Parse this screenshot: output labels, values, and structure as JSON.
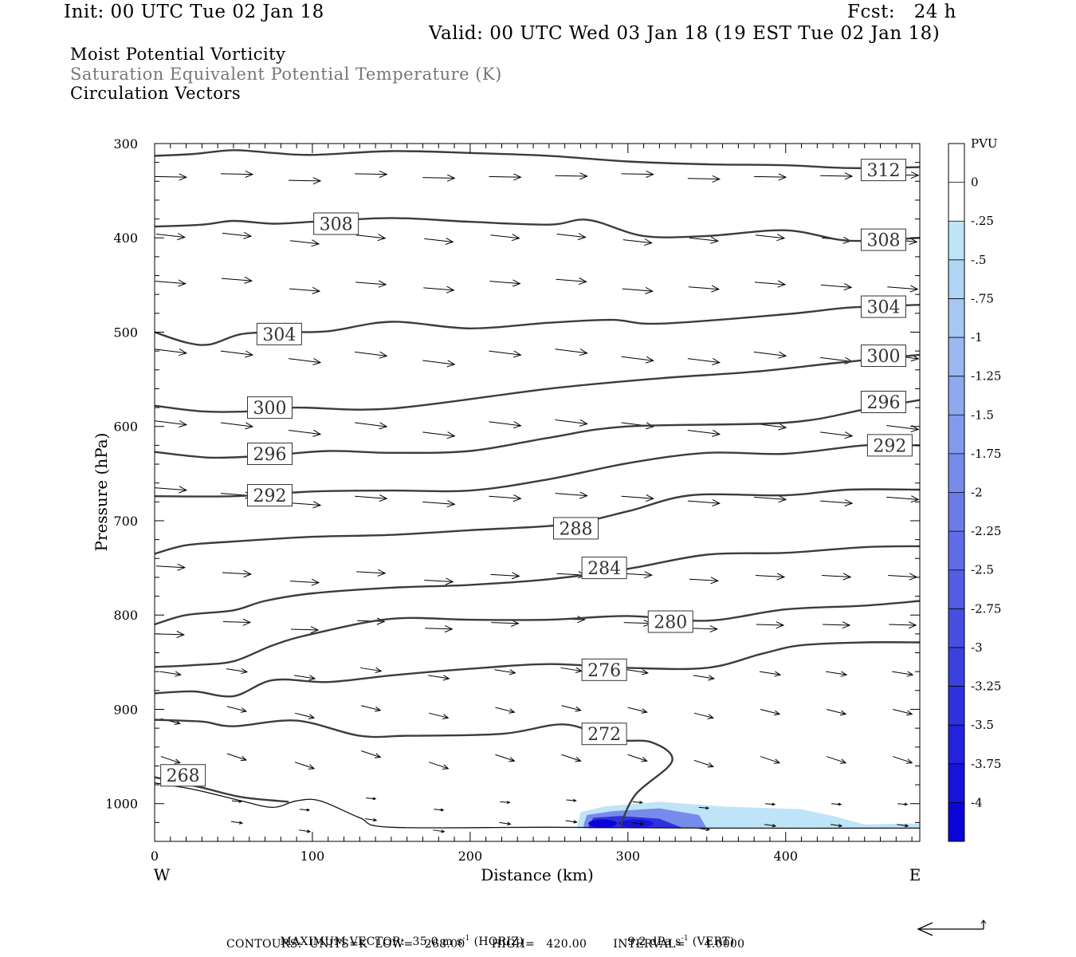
{
  "header": {
    "init": "Init: 00 UTC Tue 02 Jan 18",
    "fcst": "Fcst:   24 h",
    "valid": "Valid: 00 UTC Wed 03 Jan 18 (19 EST Tue 02 Jan 18)"
  },
  "legend_lines": {
    "line1": "Moist Potential Vorticity",
    "line2": "Saturation Equivalent Potential Temperature (K)",
    "line3": "Circulation Vectors"
  },
  "footer": {
    "max_vector_prefix": "MAXIMUM VECTOR:  35.0 m s",
    "horiz_suffix": " (HORIZ)",
    "vert_prefix": "9.2 dPa s",
    "vert_suffix": " (VERT)",
    "exp": "-1",
    "contours_line": "CONTOURS:  UNITS=K  LOW=   268.00       HIGH=   420.00       INTERVAL=     4.0000"
  },
  "chart_data": {
    "type": "cross-section",
    "xlabel": "Distance (km)",
    "ylabel": "Pressure (hPa)",
    "x_left_label": "W",
    "x_right_label": "E",
    "xlim": [
      0,
      485
    ],
    "ylim": [
      300,
      1040
    ],
    "x_ticks": [
      0,
      100,
      200,
      300,
      400
    ],
    "y_ticks": [
      300,
      400,
      500,
      600,
      700,
      800,
      900,
      1000
    ],
    "colorbar": {
      "title": "PVU",
      "labels": [
        "0",
        "-.25",
        "-.5",
        "-.75",
        "-1",
        "-1.25",
        "-1.5",
        "-1.75",
        "-2",
        "-2.25",
        "-2.5",
        "-2.75",
        "-3",
        "-3.25",
        "-3.5",
        "-3.75",
        "-4"
      ],
      "colors": [
        "#ffffff",
        "#ffffff",
        "#bfe4f8",
        "#b0d6f5",
        "#a6c7f3",
        "#9bb8f1",
        "#8fa9ef",
        "#839aed",
        "#778bea",
        "#6b7ce8",
        "#5f6de6",
        "#535ee4",
        "#474fe2",
        "#3b40e0",
        "#2f31de",
        "#2322dc",
        "#1713da",
        "#0b04d8"
      ]
    },
    "isentropes": [
      {
        "label": "312",
        "label_at": [
          462,
          328
        ],
        "points": [
          [
            0,
            313
          ],
          [
            25,
            311
          ],
          [
            50,
            307
          ],
          [
            75,
            310
          ],
          [
            100,
            312
          ],
          [
            150,
            308
          ],
          [
            200,
            310
          ],
          [
            250,
            313
          ],
          [
            300,
            319
          ],
          [
            350,
            322
          ],
          [
            400,
            323
          ],
          [
            440,
            326
          ],
          [
            485,
            325
          ]
        ]
      },
      {
        "label": "308",
        "label_at": [
          115,
          385
        ],
        "points": [
          [
            0,
            388
          ],
          [
            30,
            386
          ],
          [
            50,
            382
          ],
          [
            75,
            385
          ],
          [
            100,
            383
          ],
          [
            150,
            379
          ],
          [
            200,
            383
          ],
          [
            250,
            386
          ],
          [
            275,
            381
          ],
          [
            310,
            398
          ],
          [
            350,
            398
          ],
          [
            400,
            392
          ],
          [
            440,
            403
          ],
          [
            485,
            400
          ]
        ]
      },
      {
        "label": "308",
        "label_at": [
          462,
          402
        ],
        "points": []
      },
      {
        "label": "304",
        "label_at": [
          462,
          473
        ],
        "points": [
          [
            0,
            500
          ],
          [
            20,
            511
          ],
          [
            35,
            513
          ],
          [
            55,
            502
          ],
          [
            80,
            500
          ],
          [
            110,
            499
          ],
          [
            150,
            489
          ],
          [
            200,
            496
          ],
          [
            250,
            490
          ],
          [
            290,
            487
          ],
          [
            320,
            491
          ],
          [
            400,
            481
          ],
          [
            440,
            474
          ],
          [
            485,
            471
          ]
        ]
      },
      {
        "label": "304",
        "label_at": [
          79,
          502
        ],
        "points": []
      },
      {
        "label": "300",
        "label_at": [
          462,
          525
        ],
        "points": [
          [
            0,
            578
          ],
          [
            30,
            584
          ],
          [
            60,
            584
          ],
          [
            90,
            580
          ],
          [
            150,
            581
          ],
          [
            250,
            560
          ],
          [
            320,
            549
          ],
          [
            380,
            542
          ],
          [
            430,
            533
          ],
          [
            485,
            524
          ]
        ]
      },
      {
        "label": "300",
        "label_at": [
          73,
          580
        ],
        "points": []
      },
      {
        "label": "296",
        "label_at": [
          462,
          574
        ],
        "points": [
          [
            0,
            627
          ],
          [
            35,
            633
          ],
          [
            70,
            631
          ],
          [
            110,
            626
          ],
          [
            150,
            628
          ],
          [
            200,
            626
          ],
          [
            250,
            612
          ],
          [
            300,
            600
          ],
          [
            400,
            596
          ],
          [
            450,
            582
          ],
          [
            485,
            572
          ]
        ]
      },
      {
        "label": "296",
        "label_at": [
          73,
          629
        ],
        "points": []
      },
      {
        "label": "292",
        "label_at": [
          466,
          620
        ],
        "points": [
          [
            0,
            674
          ],
          [
            50,
            674
          ],
          [
            100,
            669
          ],
          [
            150,
            668
          ],
          [
            200,
            668
          ],
          [
            250,
            656
          ],
          [
            300,
            639
          ],
          [
            350,
            628
          ],
          [
            400,
            629
          ],
          [
            450,
            620
          ],
          [
            485,
            620
          ]
        ]
      },
      {
        "label": "292",
        "label_at": [
          73,
          673
        ],
        "points": []
      },
      {
        "label": "288",
        "label_at": [
          267,
          708
        ],
        "points": [
          [
            0,
            735
          ],
          [
            20,
            726
          ],
          [
            50,
            722
          ],
          [
            100,
            717
          ],
          [
            150,
            715
          ],
          [
            200,
            710
          ],
          [
            260,
            704
          ],
          [
            300,
            690
          ],
          [
            340,
            673
          ],
          [
            400,
            673
          ],
          [
            440,
            667
          ],
          [
            485,
            667
          ]
        ]
      },
      {
        "label": "284",
        "label_at": [
          285,
          750
        ],
        "points": [
          [
            0,
            810
          ],
          [
            20,
            800
          ],
          [
            50,
            795
          ],
          [
            70,
            785
          ],
          [
            100,
            777
          ],
          [
            150,
            771
          ],
          [
            200,
            768
          ],
          [
            250,
            762
          ],
          [
            300,
            751
          ],
          [
            350,
            736
          ],
          [
            400,
            734
          ],
          [
            450,
            728
          ],
          [
            485,
            727
          ]
        ]
      },
      {
        "label": "280",
        "label_at": [
          327,
          807
        ],
        "points": [
          [
            0,
            855
          ],
          [
            25,
            853
          ],
          [
            50,
            849
          ],
          [
            75,
            832
          ],
          [
            100,
            820
          ],
          [
            150,
            804
          ],
          [
            200,
            805
          ],
          [
            250,
            805
          ],
          [
            300,
            801
          ],
          [
            350,
            806
          ],
          [
            400,
            794
          ],
          [
            450,
            790
          ],
          [
            485,
            785
          ]
        ]
      },
      {
        "label": "276",
        "label_at": [
          285,
          858
        ],
        "points": [
          [
            0,
            883
          ],
          [
            25,
            881
          ],
          [
            50,
            886
          ],
          [
            75,
            869
          ],
          [
            110,
            871
          ],
          [
            150,
            864
          ],
          [
            200,
            857
          ],
          [
            250,
            852
          ],
          [
            300,
            856
          ],
          [
            350,
            856
          ],
          [
            385,
            841
          ],
          [
            410,
            832
          ],
          [
            450,
            829
          ],
          [
            485,
            829
          ]
        ]
      },
      {
        "label": "272",
        "label_at": [
          285,
          926
        ],
        "points": [
          [
            0,
            911
          ],
          [
            30,
            913
          ],
          [
            50,
            918
          ],
          [
            90,
            912
          ],
          [
            130,
            928
          ],
          [
            160,
            928
          ],
          [
            220,
            926
          ],
          [
            260,
            916
          ],
          [
            290,
            932
          ],
          [
            315,
            935
          ],
          [
            328,
            955
          ],
          [
            305,
            990
          ],
          [
            295,
            1024
          ]
        ]
      },
      {
        "label": "268",
        "label_at": [
          18,
          970
        ],
        "points": [
          [
            0,
            972
          ],
          [
            30,
            983
          ],
          [
            55,
            993
          ],
          [
            85,
            998
          ]
        ]
      }
    ],
    "ground_line": [
      [
        0,
        978
      ],
      [
        25,
        985
      ],
      [
        55,
        997
      ],
      [
        75,
        1004
      ],
      [
        90,
        997
      ],
      [
        105,
        997
      ],
      [
        130,
        1015
      ],
      [
        150,
        1025
      ],
      [
        250,
        1025
      ],
      [
        350,
        1026
      ],
      [
        485,
        1026
      ]
    ],
    "pv_anomaly": {
      "x_range": [
        268,
        485
      ],
      "min_pvu": -4.0
    }
  }
}
